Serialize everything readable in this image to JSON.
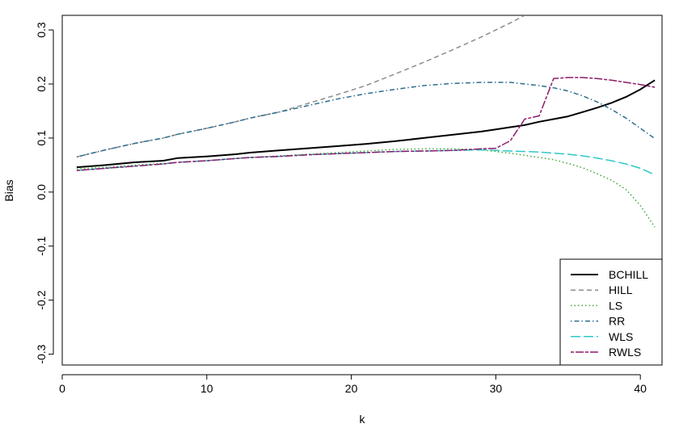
{
  "chart_data": {
    "type": "line",
    "title": "",
    "xlabel": "k",
    "ylabel": "Bias",
    "xlim": [
      0,
      41.5
    ],
    "ylim": [
      -0.32,
      0.327
    ],
    "xticks": [
      0,
      10,
      20,
      30,
      40
    ],
    "yticks": [
      -0.3,
      -0.2,
      -0.1,
      0.0,
      0.1,
      0.2,
      0.3
    ],
    "xtick_labels": [
      "0",
      "10",
      "20",
      "30",
      "40"
    ],
    "ytick_labels": [
      "-0.3",
      "-0.2",
      "-0.1",
      "0.0",
      "0.1",
      "0.2",
      "0.3"
    ],
    "legend_position": "bottom-right",
    "x": [
      1,
      3,
      5,
      7,
      8,
      10,
      12,
      13,
      15,
      17,
      19,
      21,
      23,
      25,
      27,
      29,
      30,
      31,
      32,
      33,
      34,
      35,
      36,
      37,
      38,
      39,
      40,
      41
    ],
    "series": [
      {
        "name": "BCHILL",
        "color": "#000000",
        "dash": "solid",
        "width": 2,
        "values": [
          0.046,
          0.05,
          0.055,
          0.058,
          0.063,
          0.066,
          0.07,
          0.073,
          0.077,
          0.081,
          0.085,
          0.089,
          0.094,
          0.1,
          0.106,
          0.112,
          0.116,
          0.12,
          0.124,
          0.13,
          0.135,
          0.14,
          0.148,
          0.156,
          0.165,
          0.176,
          0.19,
          0.207
        ]
      },
      {
        "name": "HILL",
        "color": "#8c8c8c",
        "dash": "dashed",
        "width": 1.5,
        "values": [
          0.065,
          0.078,
          0.09,
          0.1,
          0.107,
          0.118,
          0.13,
          0.137,
          0.148,
          0.164,
          0.18,
          0.197,
          0.218,
          0.24,
          0.263,
          0.287,
          0.3,
          0.313,
          0.327,
          null,
          null,
          null,
          null,
          null,
          null,
          null,
          null,
          null
        ]
      },
      {
        "name": "LS",
        "color": "#3aa83a",
        "dash": "dotted",
        "width": 1.5,
        "values": [
          0.043,
          0.046,
          0.05,
          0.053,
          0.055,
          0.058,
          0.062,
          0.064,
          0.067,
          0.07,
          0.073,
          0.076,
          0.079,
          0.08,
          0.08,
          0.078,
          0.075,
          0.072,
          0.068,
          0.064,
          0.06,
          0.053,
          0.045,
          0.034,
          0.022,
          0.005,
          -0.025,
          -0.065
        ]
      },
      {
        "name": "RR",
        "color": "#2e6e8e",
        "dash": "dotdash",
        "width": 1.5,
        "values": [
          0.065,
          0.078,
          0.09,
          0.1,
          0.107,
          0.118,
          0.13,
          0.137,
          0.148,
          0.16,
          0.172,
          0.182,
          0.19,
          0.197,
          0.201,
          0.203,
          0.203,
          0.203,
          0.2,
          0.197,
          0.193,
          0.187,
          0.178,
          0.167,
          0.153,
          0.137,
          0.118,
          0.099
        ]
      },
      {
        "name": "WLS",
        "color": "#2fc8c8",
        "dash": "longdash",
        "width": 1.5,
        "values": [
          0.04,
          0.044,
          0.048,
          0.052,
          0.055,
          0.058,
          0.062,
          0.064,
          0.066,
          0.069,
          0.071,
          0.073,
          0.075,
          0.076,
          0.077,
          0.078,
          0.077,
          0.076,
          0.075,
          0.074,
          0.072,
          0.07,
          0.067,
          0.063,
          0.058,
          0.052,
          0.044,
          0.032
        ]
      },
      {
        "name": "RWLS",
        "color": "#8b1a6b",
        "dash": "twodash",
        "width": 1.5,
        "values": [
          0.04,
          0.044,
          0.048,
          0.052,
          0.055,
          0.058,
          0.062,
          0.064,
          0.066,
          0.069,
          0.071,
          0.073,
          0.075,
          0.076,
          0.077,
          0.08,
          0.081,
          0.095,
          0.135,
          0.141,
          0.21,
          0.212,
          0.212,
          0.21,
          0.207,
          0.203,
          0.199,
          0.194
        ]
      }
    ]
  }
}
